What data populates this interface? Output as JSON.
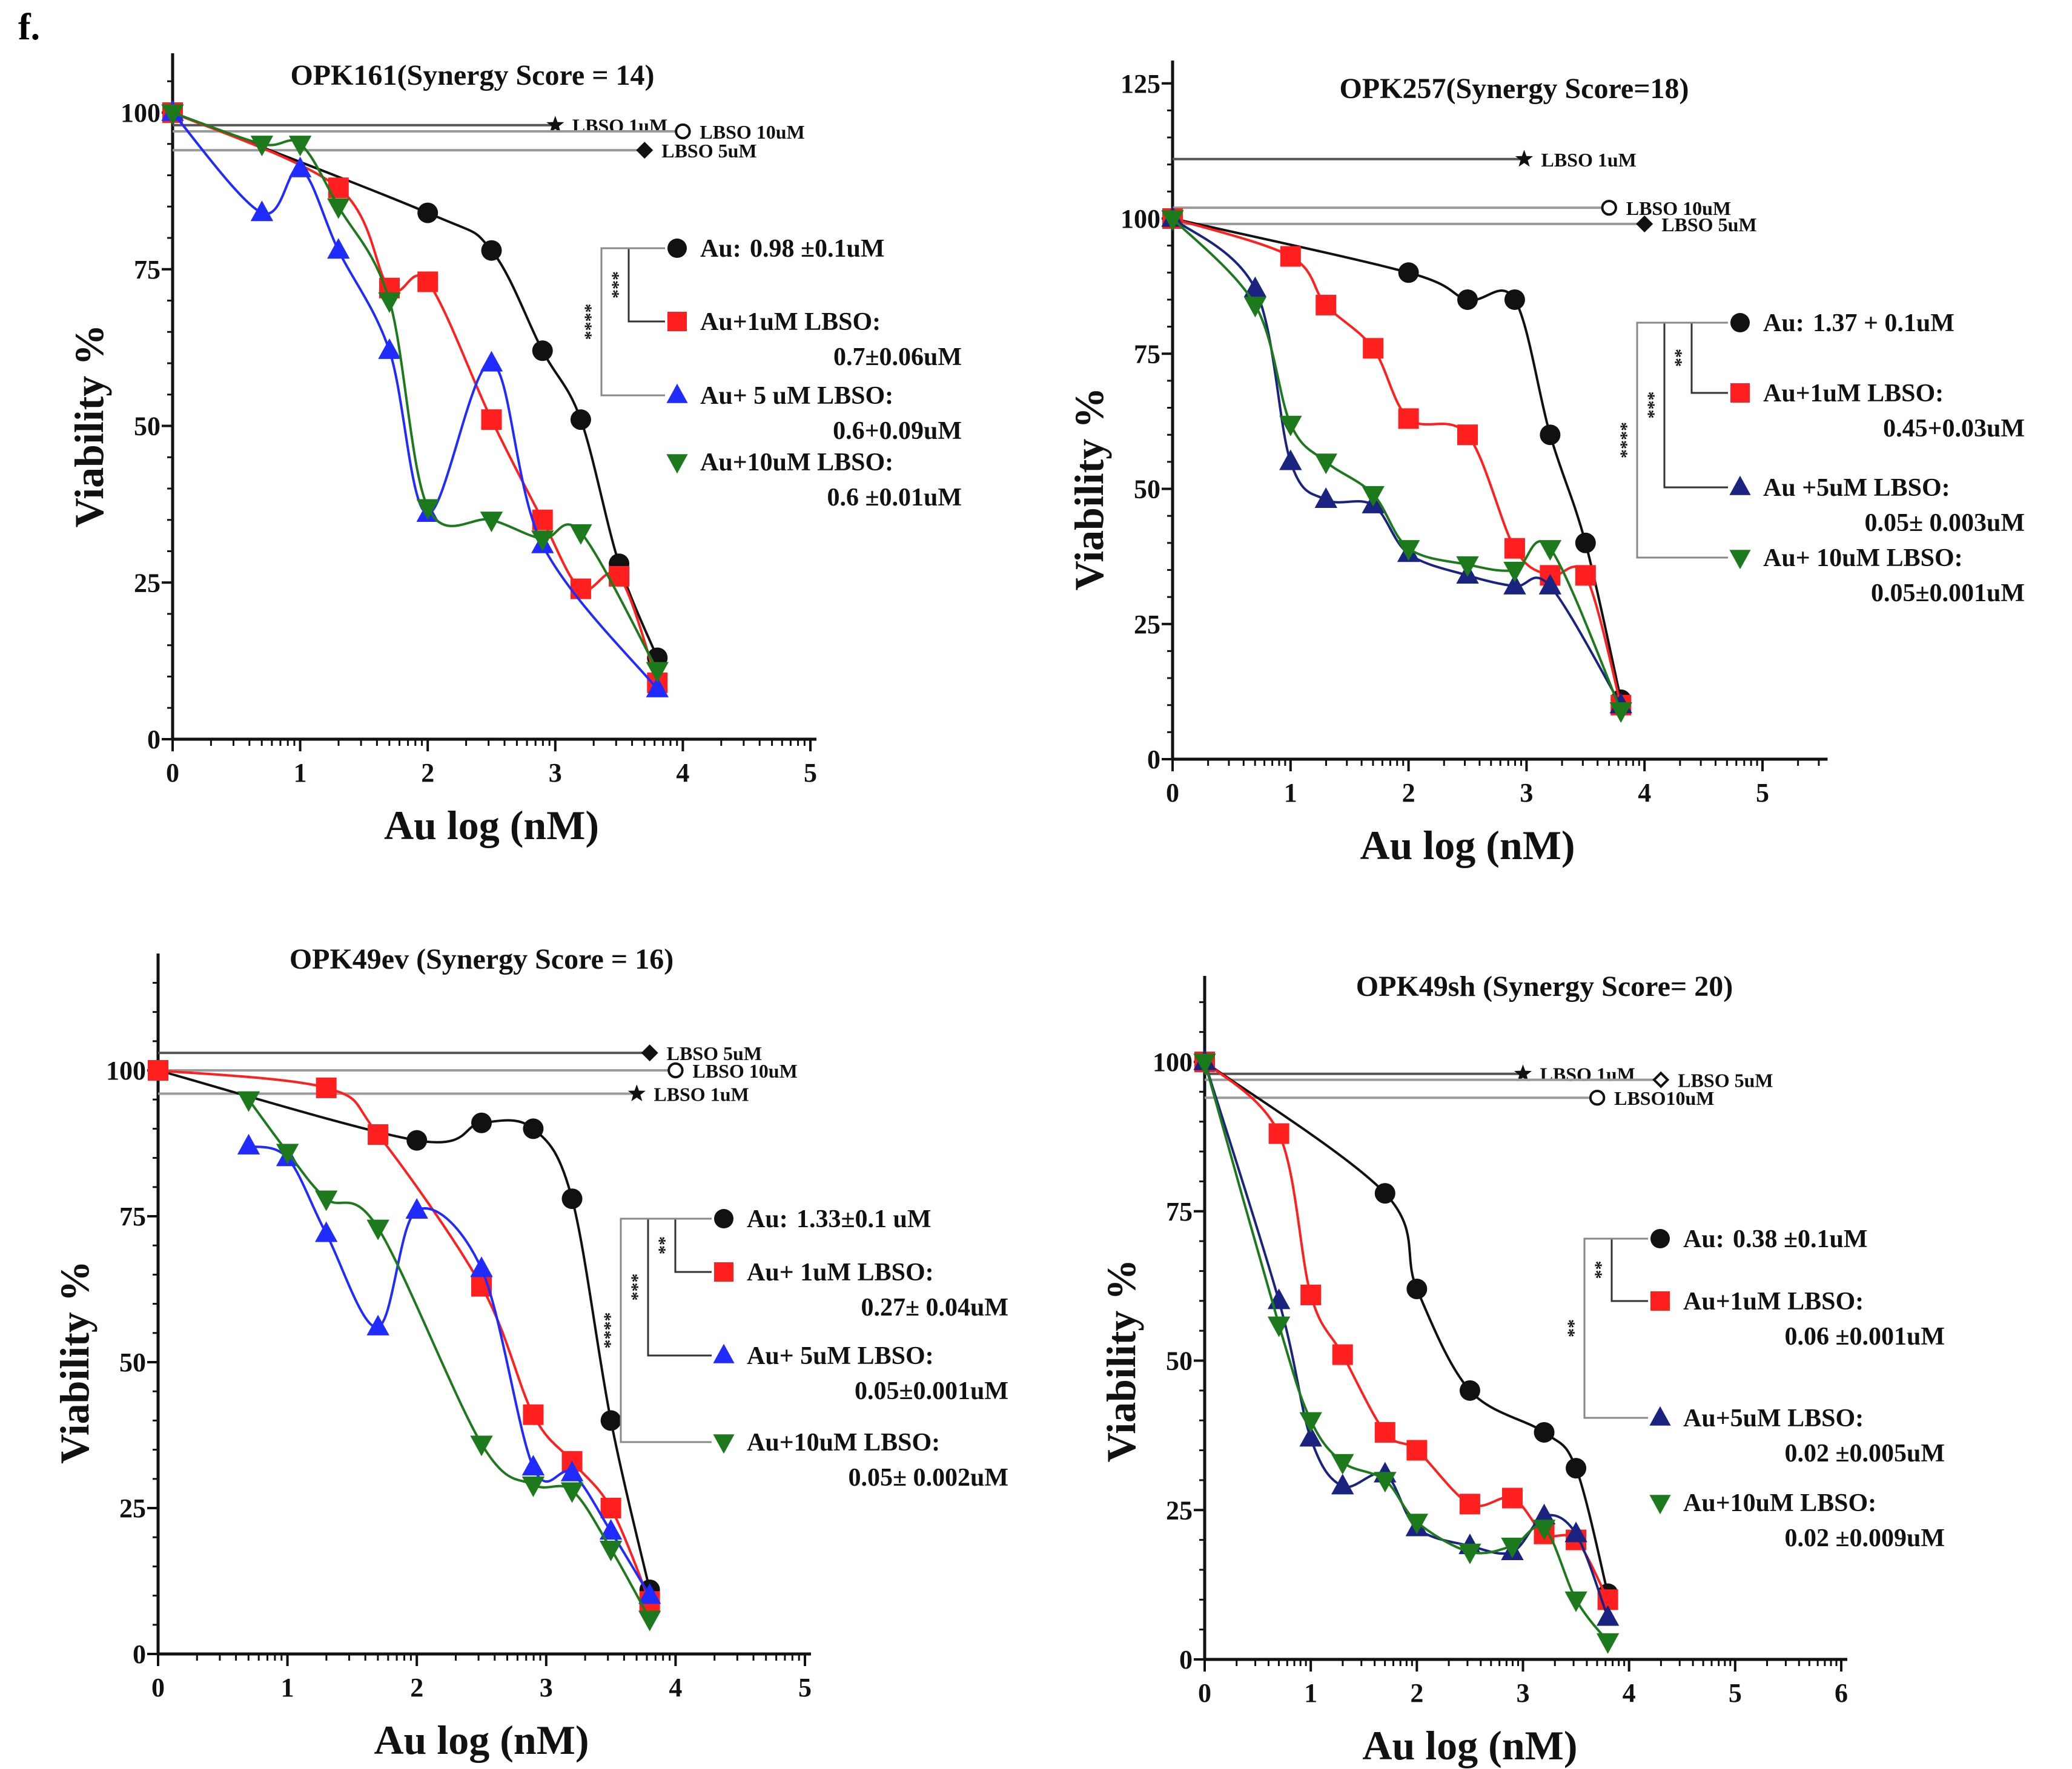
{
  "figure": {
    "panel_label": "f."
  },
  "colors": {
    "black": "#111111",
    "red": "#ff1f1f",
    "blue": "#1f2bff",
    "navy": "#1a2380",
    "green": "#1c7a1c",
    "reference": "#9a9a9a"
  },
  "chart_data": [
    {
      "type": "line",
      "title": "OPK161(Synergy Score = 14)",
      "xlabel": "Au log (nM)",
      "ylabel": "Viability %",
      "xlim": [
        0,
        5
      ],
      "ylim": [
        0,
        110
      ],
      "xticks": [
        "0",
        "1",
        "2",
        "3",
        "4",
        "5"
      ],
      "yticks": [
        "0",
        "25",
        "50",
        "75",
        "100"
      ],
      "grid": false,
      "legend_position": "right",
      "series": [
        {
          "name": "Au:",
          "ic50": "0.98 ±0.1uM",
          "color": "#111111",
          "marker": "circle",
          "x": [
            0,
            2,
            2.5,
            2.9,
            3.2,
            3.5,
            3.8
          ],
          "y": [
            100,
            84,
            78,
            62,
            51,
            28,
            13
          ]
        },
        {
          "name": "Au+1uM LBSO:",
          "ic50": "0.7±0.06uM",
          "color": "#ff1f1f",
          "marker": "square",
          "x": [
            0,
            1.3,
            1.7,
            2,
            2.5,
            2.9,
            3.2,
            3.5,
            3.8
          ],
          "y": [
            100,
            88,
            72,
            73,
            51,
            35,
            24,
            26,
            9
          ]
        },
        {
          "name": "Au+ 5 uM LBSO:",
          "ic50": "0.6+0.09uM",
          "color": "#1f2bff",
          "marker": "triangle-up",
          "x": [
            0,
            0.7,
            1,
            1.3,
            1.7,
            2,
            2.5,
            2.9,
            3.8
          ],
          "y": [
            100,
            84,
            91,
            78,
            62,
            36,
            60,
            31,
            8
          ]
        },
        {
          "name": "Au+10uM LBSO:",
          "ic50": "0.6 ±0.01uM",
          "color": "#1c7a1c",
          "marker": "triangle-down",
          "x": [
            0,
            0.7,
            1,
            1.3,
            1.7,
            2,
            2.5,
            2.9,
            3.2,
            3.8
          ],
          "y": [
            100,
            95,
            95,
            85,
            70,
            37,
            35,
            32,
            33,
            11
          ]
        }
      ],
      "references": [
        {
          "name": "LBSO 1uM",
          "marker": "star",
          "x": 3.0,
          "y": 98
        },
        {
          "name": "LBSO 10uM",
          "marker": "open-circle",
          "x": 4.0,
          "y": 97
        },
        {
          "name": "LBSO 5uM",
          "marker": "diamond",
          "x": 3.7,
          "y": 94
        }
      ],
      "significance": [
        "***",
        "****"
      ]
    },
    {
      "type": "line",
      "title": "OPK257(Synergy Score=18)",
      "xlabel": "Au log  (nM)",
      "ylabel": "Viability %",
      "xlim": [
        0,
        5.5
      ],
      "ylim": [
        0,
        130
      ],
      "xticks": [
        "0",
        "1",
        "2",
        "3",
        "4",
        "5"
      ],
      "yticks": [
        "0",
        "25",
        "50",
        "75",
        "100",
        "125"
      ],
      "grid": false,
      "legend_position": "right",
      "series": [
        {
          "name": "Au:",
          "ic50": "1.37 + 0.1uM",
          "color": "#111111",
          "marker": "circle",
          "x": [
            0,
            2,
            2.5,
            2.9,
            3.2,
            3.5,
            3.8
          ],
          "y": [
            100,
            90,
            85,
            85,
            60,
            40,
            11
          ]
        },
        {
          "name": "Au+1uM LBSO:",
          "ic50": "0.45+0.03uM",
          "color": "#ff1f1f",
          "marker": "square",
          "x": [
            0,
            1,
            1.3,
            1.7,
            2,
            2.5,
            2.9,
            3.2,
            3.5,
            3.8
          ],
          "y": [
            100,
            93,
            84,
            76,
            63,
            60,
            39,
            34,
            34,
            10
          ]
        },
        {
          "name": "Au +5uM LBSO:",
          "ic50": "0.05± 0.003uM",
          "color": "#1a2380",
          "marker": "triangle-up",
          "x": [
            0,
            0.7,
            1,
            1.3,
            1.7,
            2,
            2.5,
            2.9,
            3.2,
            3.8
          ],
          "y": [
            100,
            87,
            55,
            48,
            47,
            38,
            34,
            32,
            32,
            10
          ]
        },
        {
          "name": "Au+ 10uM LBSO:",
          "ic50": "0.05±0.001uM",
          "color": "#1c7a1c",
          "marker": "triangle-down",
          "x": [
            0,
            0.7,
            1,
            1.3,
            1.7,
            2,
            2.5,
            2.9,
            3.2,
            3.8
          ],
          "y": [
            100,
            84,
            62,
            55,
            49,
            39,
            36,
            35,
            39,
            9
          ]
        }
      ],
      "references": [
        {
          "name": "LBSO 1uM",
          "marker": "star",
          "x": 2.98,
          "y": 111
        },
        {
          "name": "LBSO 10uM",
          "marker": "open-circle",
          "x": 3.7,
          "y": 102
        },
        {
          "name": "LBSO 5uM",
          "marker": "diamond",
          "x": 4.0,
          "y": 99
        }
      ],
      "significance": [
        "**",
        "***",
        "****"
      ]
    },
    {
      "type": "line",
      "title": "OPK49ev (Synergy Score = 16)",
      "xlabel": "Au log (nM)",
      "ylabel": "Viability %",
      "xlim": [
        0,
        5
      ],
      "ylim": [
        0,
        120
      ],
      "xticks": [
        "0",
        "1",
        "2",
        "3",
        "4",
        "5"
      ],
      "yticks": [
        "0",
        "25",
        "50",
        "75",
        "100"
      ],
      "grid": false,
      "legend_position": "right",
      "series": [
        {
          "name": "Au:",
          "ic50": "1.33±0.1 uM",
          "color": "#111111",
          "marker": "circle",
          "x": [
            0,
            2,
            2.5,
            2.9,
            3.2,
            3.5,
            3.8
          ],
          "y": [
            100,
            88,
            91,
            90,
            78,
            40,
            11
          ]
        },
        {
          "name": "Au+ 1uM LBSO:",
          "ic50": "0.27± 0.04uM",
          "color": "#ff1f1f",
          "marker": "square",
          "x": [
            0,
            1.3,
            1.7,
            2.5,
            2.9,
            3.2,
            3.5,
            3.8
          ],
          "y": [
            100,
            97,
            89,
            63,
            41,
            33,
            25,
            9
          ]
        },
        {
          "name": "Au+ 5uM LBSO:",
          "ic50": "0.05±0.001uM",
          "color": "#1f2bff",
          "marker": "triangle-up",
          "x": [
            0.7,
            1,
            1.3,
            1.7,
            2,
            2.5,
            2.9,
            3.2,
            3.5,
            3.8
          ],
          "y": [
            87,
            85,
            72,
            56,
            76,
            66,
            32,
            31,
            21,
            10
          ]
        },
        {
          "name": "Au+10uM LBSO:",
          "ic50": "0.05± 0.002uM",
          "color": "#1c7a1c",
          "marker": "triangle-down",
          "x": [
            0.7,
            1,
            1.3,
            1.7,
            2.5,
            2.9,
            3.2,
            3.5,
            3.8
          ],
          "y": [
            95,
            86,
            78,
            73,
            36,
            29,
            28,
            18,
            6
          ]
        }
      ],
      "references": [
        {
          "name": "LBSO 5uM",
          "marker": "diamond",
          "x": 3.8,
          "y": 103
        },
        {
          "name": "LBSO 10uM",
          "marker": "open-circle",
          "x": 4.0,
          "y": 100
        },
        {
          "name": "LBSO 1uM",
          "marker": "star",
          "x": 3.7,
          "y": 96
        }
      ],
      "significance": [
        "**",
        "***",
        "****"
      ]
    },
    {
      "type": "line",
      "title": "OPK49sh (Synergy Score= 20)",
      "xlabel": "Au log (nM)",
      "ylabel": "Viability %",
      "xlim": [
        0,
        6
      ],
      "ylim": [
        0,
        115
      ],
      "xticks": [
        "0",
        "1",
        "2",
        "3",
        "4",
        "5",
        "6"
      ],
      "yticks": [
        "0",
        "25",
        "50",
        "75",
        "100"
      ],
      "grid": false,
      "legend_position": "right",
      "series": [
        {
          "name": "Au:",
          "ic50": "0.38 ±0.1uM",
          "color": "#111111",
          "marker": "circle",
          "x": [
            0,
            1.7,
            2,
            2.5,
            3.2,
            3.5,
            3.8
          ],
          "y": [
            100,
            78,
            62,
            45,
            38,
            32,
            11
          ]
        },
        {
          "name": "Au+1uM LBSO:",
          "ic50": "0.06 ±0.001uM",
          "color": "#ff1f1f",
          "marker": "square",
          "x": [
            0,
            0.7,
            1,
            1.3,
            1.7,
            2,
            2.5,
            2.9,
            3.2,
            3.5,
            3.8
          ],
          "y": [
            100,
            88,
            61,
            51,
            38,
            35,
            26,
            27,
            21,
            20,
            10
          ]
        },
        {
          "name": "Au+5uM LBSO:",
          "ic50": "0.02 ±0.005uM",
          "color": "#1a2380",
          "marker": "triangle-up",
          "x": [
            0,
            0.7,
            1,
            1.3,
            1.7,
            2,
            2.5,
            2.9,
            3.2,
            3.5,
            3.8
          ],
          "y": [
            100,
            60,
            37,
            29,
            31,
            22,
            19,
            18,
            24,
            21,
            7
          ]
        },
        {
          "name": "Au+10uM LBSO:",
          "ic50": "0.02 ±0.009uM",
          "color": "#1c7a1c",
          "marker": "triangle-down",
          "x": [
            0,
            0.7,
            1,
            1.3,
            1.7,
            2,
            2.5,
            2.9,
            3.2,
            3.5,
            3.8
          ],
          "y": [
            100,
            56,
            40,
            33,
            30,
            23,
            18,
            19,
            22,
            10,
            3
          ]
        }
      ],
      "references": [
        {
          "name": "LBSO 1uM",
          "marker": "star",
          "x": 3.0,
          "y": 98
        },
        {
          "name": "LBSO 5uM",
          "marker": "open-diamond",
          "x": 4.3,
          "y": 97
        },
        {
          "name": "LBSO10uM",
          "marker": "open-circle",
          "x": 3.7,
          "y": 94
        }
      ],
      "significance": [
        "**",
        "**"
      ]
    }
  ]
}
